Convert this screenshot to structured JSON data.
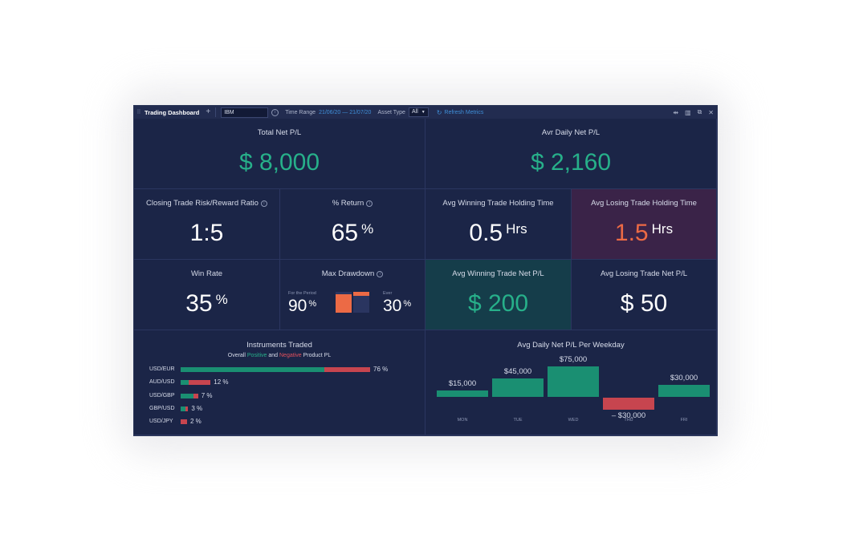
{
  "titlebar": {
    "title": "Trading Dashboard",
    "add_icon": "plus-icon",
    "symbol": "IBM",
    "time_range_label": "Time Range",
    "time_range_value": "21/06/20 — 21/07/20",
    "asset_type_label": "Asset Type",
    "asset_type_value": "All",
    "refresh_label": "Refresh Metrics",
    "right_icons": [
      "transfer-icon",
      "columns-icon",
      "restore-icon",
      "close-icon"
    ]
  },
  "total_net": {
    "label": "Total Net P/L",
    "value": "$ 8,000"
  },
  "avg_daily": {
    "label": "Avr Daily Net P/L",
    "value": "$ 2,160"
  },
  "risk_reward": {
    "label": "Closing Trade Risk/Reward Ratio",
    "value": "1:5"
  },
  "pct_return": {
    "label": "% Return",
    "value": "65",
    "unit": "%"
  },
  "win_hold": {
    "label": "Avg Winning Trade Holding Time",
    "value": "0.5",
    "unit": "Hrs"
  },
  "lose_hold": {
    "label": "Avg Losing Trade Holding Time",
    "value": "1.5",
    "unit": "Hrs"
  },
  "win_rate": {
    "label": "Win Rate",
    "value": "35",
    "unit": "%"
  },
  "drawdown": {
    "label": "Max Drawdown",
    "period_label": "For the Period",
    "period_value": "90",
    "period_unit": "%",
    "ever_label": "Ever",
    "ever_value": "30",
    "ever_unit": "%",
    "period_fraction": 0.9,
    "ever_fraction": 0.3
  },
  "win_net": {
    "label": "Avg Winning Trade Net P/L",
    "value": "$ 200"
  },
  "lose_net": {
    "label": "Avg Losing Trade Net P/L",
    "value": "$ 50"
  },
  "instruments": {
    "title": "Instruments Traded",
    "subtitle_prefix": "Overall",
    "subtitle_positive": "Positive",
    "subtitle_and": "and",
    "subtitle_negative": "Negative",
    "subtitle_suffix": "Product PL",
    "rows": [
      {
        "name": "USD/EUR",
        "pct": "76 %",
        "total": 76,
        "positive_share": 0.76
      },
      {
        "name": "AUD/USD",
        "pct": "12 %",
        "total": 12,
        "positive_share": 0.27
      },
      {
        "name": "USD/GBP",
        "pct": "7 %",
        "total": 7,
        "positive_share": 0.75
      },
      {
        "name": "GBP/USD",
        "pct": "3 %",
        "total": 3,
        "positive_share": 0.6
      },
      {
        "name": "USD/JPY",
        "pct": "2 %",
        "total": 2,
        "positive_share": 0.0
      }
    ]
  },
  "chart_data": {
    "type": "bar",
    "title": "Avg Daily Net P/L Per Weekday",
    "categories": [
      "MON",
      "TUE",
      "WED",
      "THU",
      "FRI"
    ],
    "values": [
      15000,
      45000,
      75000,
      -30000,
      30000
    ],
    "labels": [
      "$15,000",
      "$45,000",
      "$75,000",
      "– $30,000",
      "$30,000"
    ],
    "colors": {
      "positive": "#1a8f72",
      "negative": "#c7454f"
    }
  }
}
